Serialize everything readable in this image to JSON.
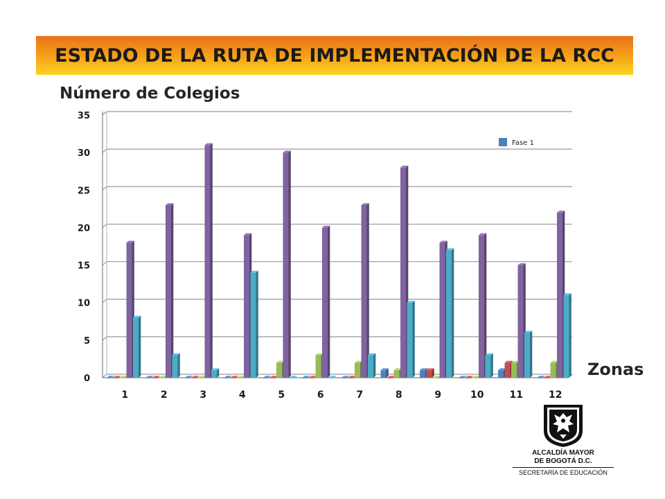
{
  "header": {
    "title": "ESTADO DE LA RUTA DE  IMPLEMENTACIÓN DE LA RCC"
  },
  "chart_data": {
    "type": "bar",
    "ylabel": "Número de Colegios",
    "xlabel": "Zonas",
    "categories": [
      "1",
      "2",
      "3",
      "4",
      "5",
      "6",
      "7",
      "8",
      "9",
      "10",
      "11",
      "12"
    ],
    "ylim": [
      0,
      35
    ],
    "yticks": [
      0,
      5,
      10,
      15,
      20,
      25,
      30,
      35
    ],
    "grid": true,
    "legend": {
      "position": "top-right",
      "entries": [
        "Fase 1"
      ]
    },
    "series": [
      {
        "name": "Fase 1",
        "color": "#4f81bd",
        "values": [
          0,
          0,
          0,
          0,
          0,
          0,
          0,
          1,
          1,
          0,
          1,
          0
        ]
      },
      {
        "color": "#c0504d",
        "values": [
          0,
          0,
          0,
          0,
          0,
          0,
          0,
          0,
          1,
          0,
          2,
          0
        ]
      },
      {
        "color": "#9bbb59",
        "values": [
          0,
          0,
          0,
          0,
          2,
          3,
          2,
          1,
          0,
          0,
          2,
          2
        ]
      },
      {
        "color": "#8064a2",
        "values": [
          18,
          23,
          31,
          19,
          30,
          20,
          23,
          28,
          18,
          19,
          15,
          22
        ]
      },
      {
        "color": "#4bacc6",
        "values": [
          8,
          3,
          1,
          14,
          0,
          0,
          3,
          10,
          17,
          3,
          6,
          11
        ]
      }
    ]
  },
  "logo": {
    "line1": "ALCALDÍA MAYOR",
    "line2": "DE BOGOTÁ D.C.",
    "line3": "SECRETARÍA DE EDUCACIÓN"
  }
}
